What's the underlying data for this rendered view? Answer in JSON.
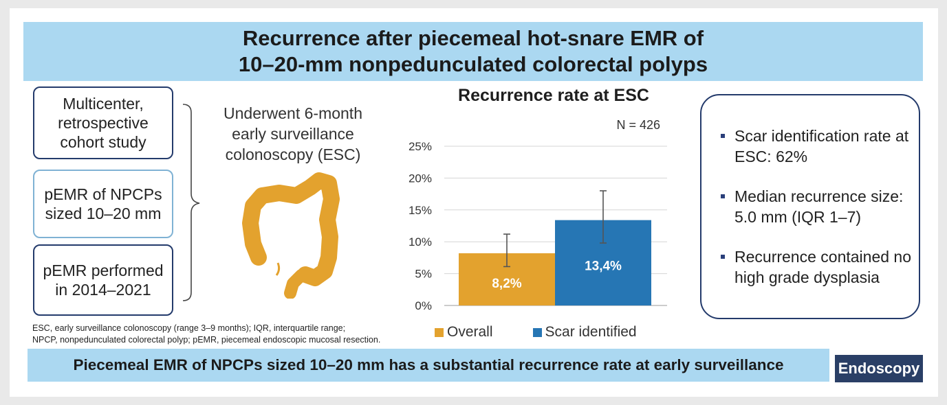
{
  "header": {
    "title_line1": "Recurrence after piecemeal hot-snare EMR of",
    "title_line2": "10–20-mm nonpedunculated colorectal polyps"
  },
  "study_design": {
    "boxes": [
      "Multicenter,\nretrospective\ncohort study",
      "pEMR of NPCPs\nsized 10–20 mm",
      "pEMR performed\nin 2014–2021"
    ],
    "esc_text": "Underwent 6-month\nearly surveillance\ncolonoscopy (ESC)",
    "colon_icon": "colon-icon"
  },
  "chart_data": {
    "type": "bar",
    "title": "Recurrence rate at ESC",
    "annotation": "N = 426",
    "categories": [
      "Overall",
      "Scar identified"
    ],
    "values": [
      8.2,
      13.4
    ],
    "data_labels": [
      "8,2%",
      "13,4%"
    ],
    "error_bars": [
      [
        6.1,
        11.2
      ],
      [
        9.8,
        18.0
      ]
    ],
    "colors": [
      "#e3a22e",
      "#2676b4"
    ],
    "yticks": [
      "0%",
      "5%",
      "10%",
      "15%",
      "20%",
      "25%"
    ],
    "ylim": [
      0,
      25
    ],
    "grid": true,
    "legend": "bottom",
    "xlabel": "",
    "ylabel": ""
  },
  "key_findings": [
    "Scar identification rate at ESC: 62%",
    "Median recurrence size: 5.0 mm (IQR 1–7)",
    "Recurrence contained no high grade dysplasia"
  ],
  "footnote": "ESC, early surveillance colonoscopy (range 3–9 months); IQR, interquartile range;\nNPCP, nonpedunculated colorectal polyp; pEMR, piecemeal endoscopic mucosal resection.",
  "conclusion": "Piecemeal EMR of NPCPs sized 10–20 mm has a substantial recurrence rate at early surveillance",
  "journal": "Endoscopy",
  "colors": {
    "band": "#abd8f1",
    "navy": "#233a6b",
    "orange": "#e3a22e",
    "blue": "#2676b4"
  }
}
